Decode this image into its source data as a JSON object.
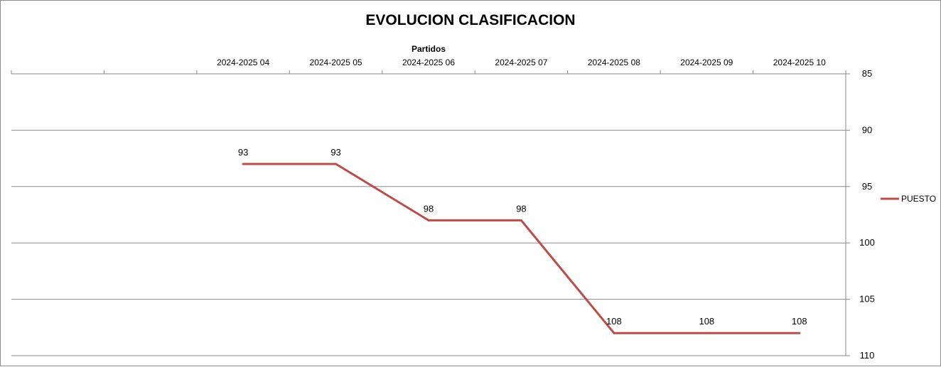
{
  "chart_data": {
    "type": "line",
    "title": "EVOLUCION CLASIFICACION",
    "xlabel": "Partidos",
    "ylabel": "",
    "x_axis_position": "top",
    "y_axis_position": "right",
    "y_reversed": true,
    "ylim": [
      85,
      110
    ],
    "yticks": [
      85,
      90,
      95,
      100,
      105,
      110
    ],
    "grid": true,
    "legend": "right",
    "categories": [
      "",
      "",
      "2024-2025 04",
      "2024-2025 05",
      "2024-2025 06",
      "2024-2025 07",
      "2024-2025 08",
      "2024-2025 09",
      "2024-2025 10"
    ],
    "series": [
      {
        "name": "PUESTO",
        "color": "#be4b48",
        "values": [
          null,
          null,
          93,
          93,
          98,
          98,
          108,
          108,
          108
        ],
        "data_labels": [
          "",
          "",
          "93",
          "93",
          "98",
          "98",
          "108",
          "108",
          "108"
        ]
      }
    ]
  }
}
